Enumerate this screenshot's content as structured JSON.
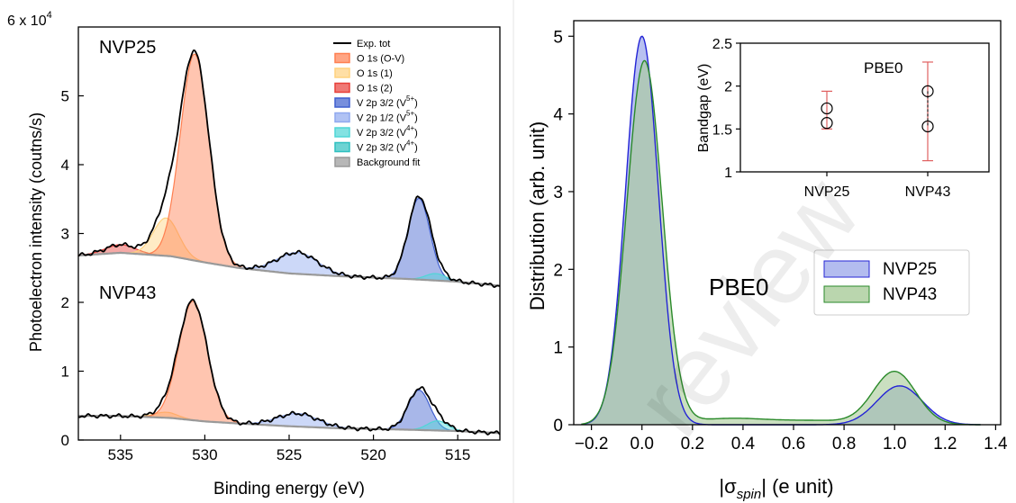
{
  "chart_data": [
    {
      "type": "area",
      "panel": "XPS",
      "xlabel": "Binding energy (eV)",
      "ylabel": "Photoelectron intensity (coutns/s)",
      "y_multiplier": "6 x 10",
      "y_multiplier_exp": "4",
      "xlim": [
        537.5,
        512.5
      ],
      "ylim": [
        0,
        6
      ],
      "x_ticks": [
        "535",
        "530",
        "525",
        "520",
        "515"
      ],
      "y_ticks": [
        "0",
        "1",
        "2",
        "3",
        "4",
        "5"
      ],
      "panel_labels": [
        "NVP25",
        "NVP43"
      ],
      "legend_position": "top-right",
      "legend": [
        {
          "label": "Exp. tot",
          "color": "#000000",
          "kind": "line"
        },
        {
          "label": "O 1s (O-V)",
          "color": "#ff7f50",
          "kind": "patch"
        },
        {
          "label": "O 1s (1)",
          "color": "#ffd27f",
          "kind": "patch"
        },
        {
          "label": "O 1s (2)",
          "color": "#e8403a",
          "kind": "patch"
        },
        {
          "label": "V 2p 3/2 (V",
          "sup": "5+",
          "tail": ")",
          "color": "#3f5fcf",
          "kind": "patch"
        },
        {
          "label": "V 2p 1/2 (V",
          "sup": "5+",
          "tail": ")",
          "color": "#8fa8ef",
          "kind": "patch"
        },
        {
          "label": "V 2p 3/2 (V",
          "sup": "4+",
          "tail": ")",
          "color": "#4fd6d6",
          "kind": "patch"
        },
        {
          "label": "V 2p 3/2 (V",
          "sup": "4+",
          "tail": ")",
          "color": "#2fc0c0",
          "kind": "patch"
        },
        {
          "label": "Background fit",
          "color": "#999999",
          "kind": "patch"
        }
      ],
      "spectra": [
        {
          "name": "NVP25",
          "background": [
            [
              537.5,
              2.68
            ],
            [
              535,
              2.72
            ],
            [
              532,
              2.67
            ],
            [
              530,
              2.58
            ],
            [
              528,
              2.5
            ],
            [
              525,
              2.42
            ],
            [
              522,
              2.38
            ],
            [
              520,
              2.36
            ],
            [
              518,
              2.34
            ],
            [
              515,
              2.3
            ],
            [
              512.5,
              2.24
            ]
          ],
          "peaks": [
            {
              "component": "O 1s (2)",
              "color": "#e8403a",
              "center": 535.0,
              "height": 0.12,
              "width": 0.9
            },
            {
              "component": "O 1s (1)",
              "color": "#ffd27f",
              "center": 532.3,
              "height": 0.55,
              "width": 0.75
            },
            {
              "component": "O 1s (O-V)",
              "color": "#ff7f50",
              "center": 530.6,
              "height": 3.0,
              "width": 0.85
            },
            {
              "component": "V 2p 1/2 (V5+)",
              "color": "#8fa8ef",
              "center": 524.5,
              "height": 0.31,
              "width": 1.2
            },
            {
              "component": "V 2p 3/2 (V5+)",
              "color": "#3f5fcf",
              "center": 517.3,
              "height": 1.18,
              "width": 0.65
            },
            {
              "component": "V 2p 3/2 (V4+)",
              "color": "#4fd6d6",
              "center": 516.3,
              "height": 0.1,
              "width": 0.6
            }
          ]
        },
        {
          "name": "NVP43",
          "background": [
            [
              537.5,
              0.35
            ],
            [
              535,
              0.35
            ],
            [
              532,
              0.32
            ],
            [
              530,
              0.27
            ],
            [
              528,
              0.24
            ],
            [
              525,
              0.2
            ],
            [
              522,
              0.17
            ],
            [
              520,
              0.16
            ],
            [
              518,
              0.15
            ],
            [
              515,
              0.13
            ],
            [
              512.5,
              0.1
            ]
          ],
          "peaks": [
            {
              "component": "O 1s (1)",
              "color": "#ffd27f",
              "center": 532.3,
              "height": 0.08,
              "width": 0.7
            },
            {
              "component": "O 1s (O-V)",
              "color": "#ff7f50",
              "center": 530.7,
              "height": 1.73,
              "width": 0.85
            },
            {
              "component": "V 2p 1/2 (V5+)",
              "color": "#8fa8ef",
              "center": 524.5,
              "height": 0.19,
              "width": 1.2
            },
            {
              "component": "V 2p 3/2 (V5+)",
              "color": "#3f5fcf",
              "center": 517.3,
              "height": 0.58,
              "width": 0.65
            },
            {
              "component": "V 2p 3/2 (V4+)",
              "color": "#4fd6d6",
              "center": 516.2,
              "height": 0.14,
              "width": 0.6
            }
          ]
        }
      ]
    },
    {
      "type": "area",
      "panel": "distribution",
      "xlabel": "|σ",
      "xlabel_sub": "spin",
      "xlabel_tail": "| (e unit)",
      "ylabel": "Distribution (arb. unit)",
      "xlim": [
        -0.27,
        1.42
      ],
      "ylim": [
        0,
        5.2
      ],
      "x_ticks": [
        "−0.2",
        "0.0",
        "0.2",
        "0.4",
        "0.6",
        "0.8",
        "1.0",
        "1.2",
        "1.4"
      ],
      "y_ticks": [
        "0",
        "1",
        "2",
        "3",
        "4",
        "5"
      ],
      "annotation": "PBE0",
      "legend_position": "center-right",
      "series": [
        {
          "name": "NVP25",
          "color": "#2424d6",
          "fill": "#9aa6ea",
          "peaks": [
            {
              "center": 0.0,
              "height": 5.0,
              "width": 0.065
            },
            {
              "center": 1.02,
              "height": 0.5,
              "width": 0.09
            }
          ]
        },
        {
          "name": "NVP43",
          "color": "#2a8a2a",
          "fill": "#a9cc9a",
          "peaks": [
            {
              "center": 0.01,
              "height": 4.68,
              "width": 0.07
            },
            {
              "center": 1.0,
              "height": 0.68,
              "width": 0.085
            },
            {
              "center": 0.35,
              "height": 0.08,
              "width": 0.15
            },
            {
              "center": 0.7,
              "height": 0.05,
              "width": 0.15
            }
          ]
        }
      ]
    },
    {
      "type": "scatter",
      "panel": "inset",
      "ylabel": "Bandgap (eV)",
      "annotation": "PBE0",
      "categories": [
        "NVP25",
        "NVP43"
      ],
      "ylim": [
        1,
        2.5
      ],
      "y_ticks": [
        "1",
        "1.5",
        "2",
        "2.5"
      ],
      "points": [
        {
          "category": "NVP25",
          "values": [
            1.74,
            1.57
          ],
          "err_low": 1.5,
          "err_high": 1.94
        },
        {
          "category": "NVP43",
          "values": [
            1.94,
            1.53
          ],
          "err_low": 1.13,
          "err_high": 2.28
        }
      ],
      "err_color": "#e06060"
    }
  ],
  "watermark": "review"
}
